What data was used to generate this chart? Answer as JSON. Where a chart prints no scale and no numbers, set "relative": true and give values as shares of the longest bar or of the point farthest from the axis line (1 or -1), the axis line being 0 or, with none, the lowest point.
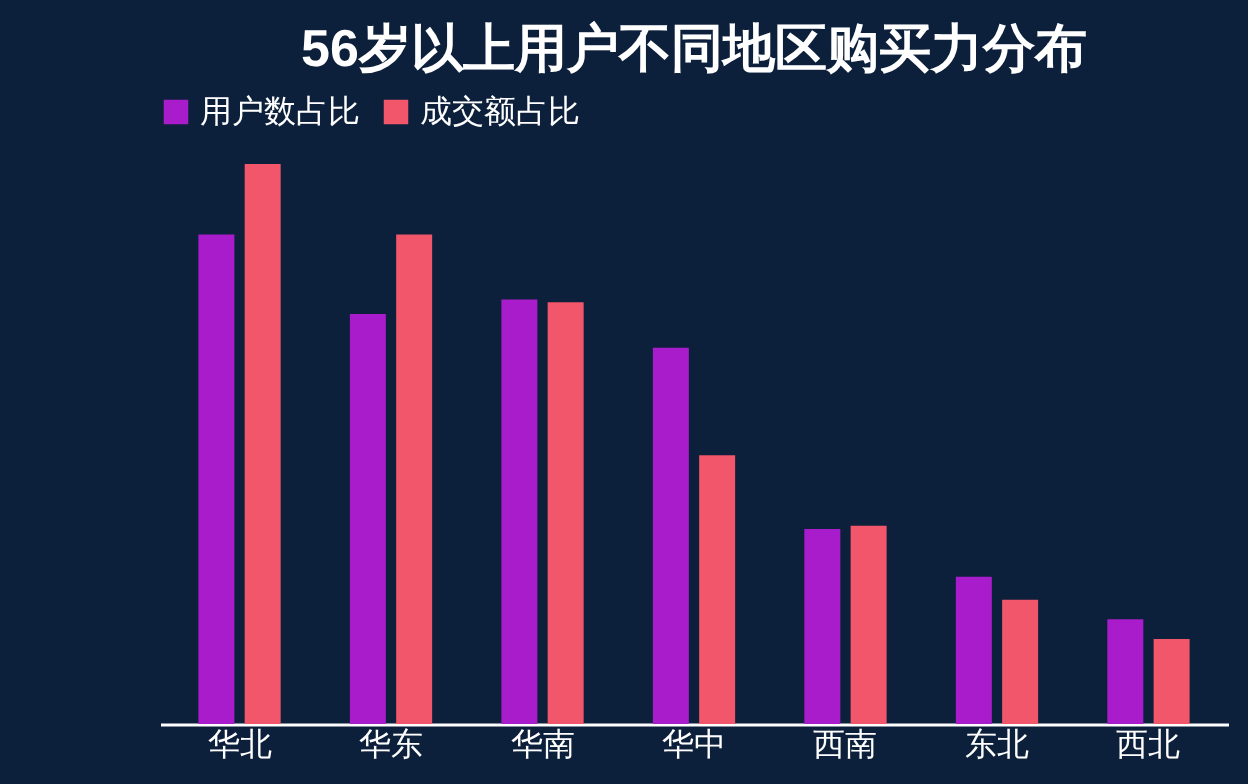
{
  "chart_data": {
    "type": "bar",
    "title": "56岁以上用户不同地区购买力分布",
    "relative": true,
    "legend": "top",
    "grid": false,
    "categories": [
      "华北",
      "华东",
      "华南",
      "华中",
      "西南",
      "东北",
      "西北"
    ],
    "series": [
      {
        "name": "用户数占比",
        "color": "#a81ccc",
        "values": [
          0.874,
          0.732,
          0.758,
          0.672,
          0.348,
          0.263,
          0.187
        ]
      },
      {
        "name": "成交额占比",
        "color": "#f2566a",
        "values": [
          1.0,
          0.874,
          0.753,
          0.48,
          0.354,
          0.222,
          0.152
        ]
      }
    ]
  }
}
